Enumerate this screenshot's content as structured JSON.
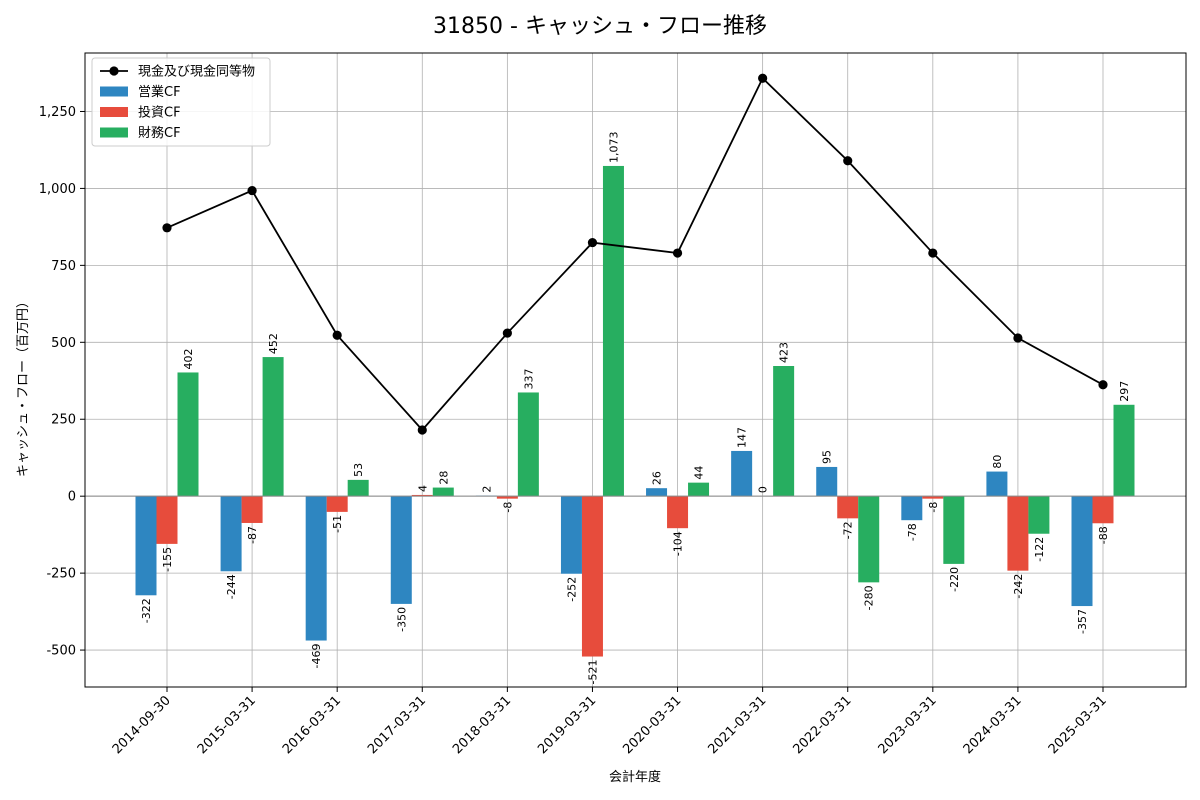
{
  "chart_data": {
    "type": "bar",
    "title": "31850 - キャッシュ・フロー推移",
    "xlabel": "会計年度",
    "ylabel": "キャッシュ・フロー（百万円）",
    "ylim": [
      -620,
      1440
    ],
    "yticks": [
      -500,
      -250,
      0,
      250,
      500,
      750,
      1000,
      1250
    ],
    "ytick_labels": [
      "-500",
      "-250",
      "0",
      "250",
      "500",
      "750",
      "1,000",
      "1,250"
    ],
    "grid": true,
    "legend_position": "top-left",
    "categories": [
      "2014-09-30",
      "2015-03-31",
      "2016-03-31",
      "2017-03-31",
      "2018-03-31",
      "2019-03-31",
      "2020-03-31",
      "2021-03-31",
      "2022-03-31",
      "2023-03-31",
      "2024-03-31",
      "2025-03-31"
    ],
    "series": [
      {
        "name": "営業CF",
        "kind": "bar",
        "color": "#2e86c1",
        "values": [
          -322,
          -244,
          -469,
          -350,
          2,
          -252,
          26,
          147,
          95,
          -78,
          80,
          -357
        ],
        "labels": [
          "-322",
          "-244",
          "-469",
          "-350",
          "2",
          "-252",
          "26",
          "147",
          "95",
          "-78",
          "80",
          "-357"
        ]
      },
      {
        "name": "投資CF",
        "kind": "bar",
        "color": "#e74c3c",
        "values": [
          -155,
          -87,
          -51,
          4,
          -8,
          -521,
          -104,
          0,
          -72,
          -8,
          -242,
          -88
        ],
        "labels": [
          "-155",
          "-87",
          "-51",
          "4",
          "-8",
          "-521",
          "-104",
          "0",
          "-72",
          "-8",
          "-242",
          "-88"
        ]
      },
      {
        "name": "財務CF",
        "kind": "bar",
        "color": "#27ae60",
        "values": [
          402,
          452,
          53,
          28,
          337,
          1073,
          44,
          423,
          -280,
          -220,
          -122,
          297
        ],
        "labels": [
          "402",
          "452",
          "53",
          "28",
          "337",
          "1,073",
          "44",
          "423",
          "-280",
          "-220",
          "-122",
          "297"
        ]
      },
      {
        "name": "現金及び現金同等物",
        "kind": "line",
        "color": "#000000",
        "values": [
          872,
          993,
          523,
          215,
          530,
          824,
          790,
          1358,
          1090,
          790,
          514,
          362
        ]
      }
    ]
  }
}
